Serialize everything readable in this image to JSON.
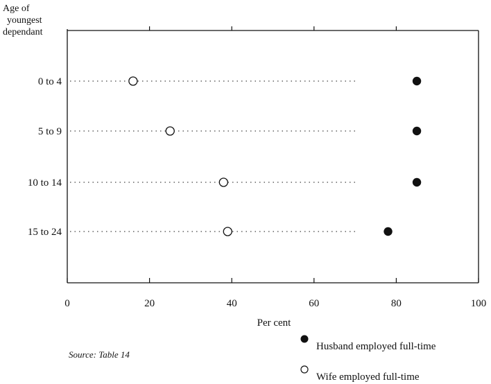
{
  "chart_data": {
    "type": "scatter",
    "title": "",
    "ylabel": "Age of youngest dependant",
    "ylabel_lines": [
      "Age of",
      "youngest",
      "dependant"
    ],
    "xlabel": "Per cent",
    "xlim": [
      0,
      100
    ],
    "x_ticks": [
      0,
      20,
      40,
      60,
      80,
      100
    ],
    "x_tick_labels": [
      "0",
      "20",
      "40",
      "60",
      "80",
      "100"
    ],
    "categories": [
      "0 to 4",
      "5 to 9",
      "10 to 14",
      "15 to 24"
    ],
    "series": [
      {
        "name": "Husband employed full-time",
        "marker": "filled-circle",
        "values": [
          85,
          85,
          85,
          78
        ]
      },
      {
        "name": "Wife employed full-time",
        "marker": "open-circle",
        "values": [
          16,
          25,
          38,
          39
        ]
      }
    ],
    "grid": false,
    "legend_position": "bottom-right"
  },
  "source_note": "Source: Table 14",
  "colors": {
    "ink": "#111111",
    "background": "#ffffff"
  }
}
